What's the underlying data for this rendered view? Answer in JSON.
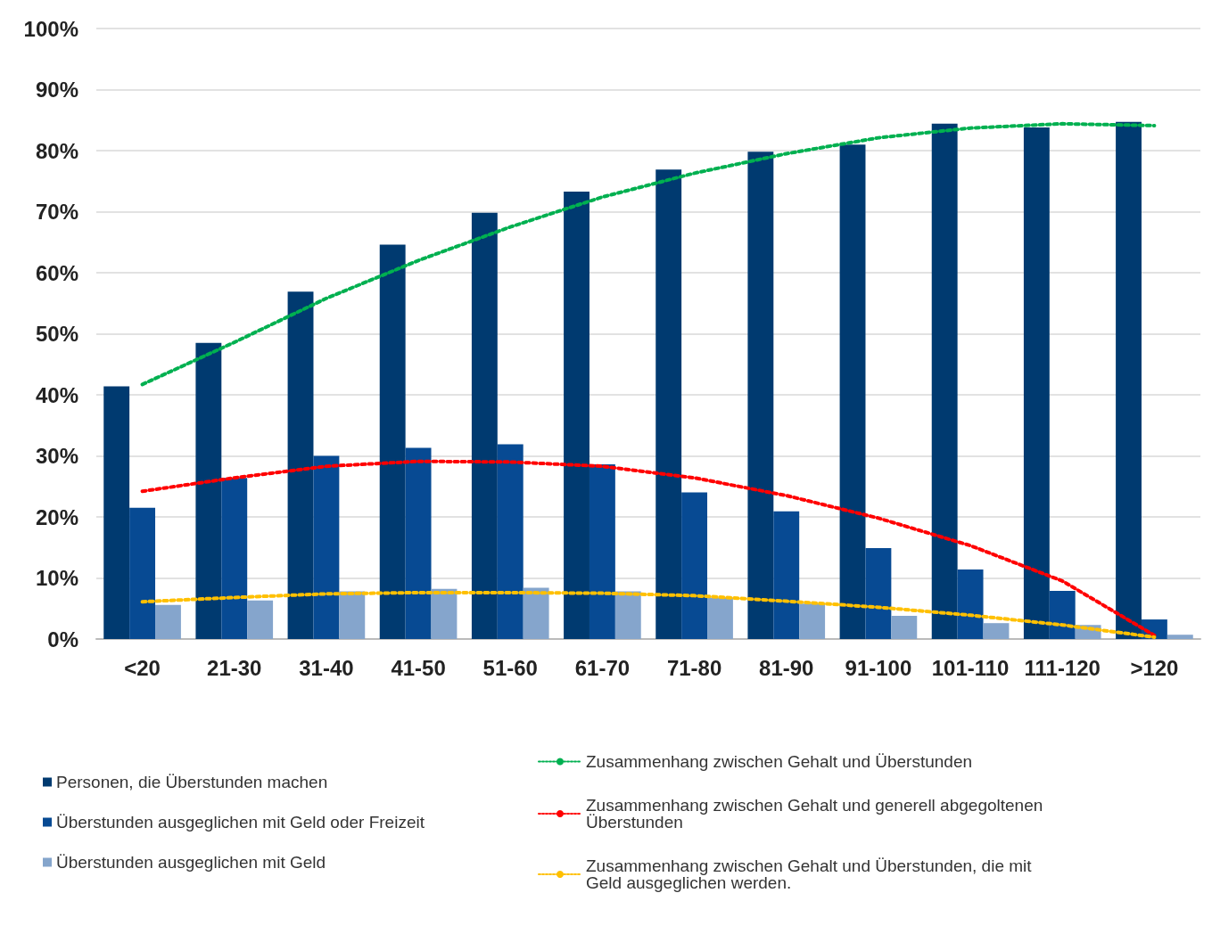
{
  "chart_data": {
    "type": "bar",
    "categories": [
      "<20",
      "21-30",
      "31-40",
      "41-50",
      "51-60",
      "61-70",
      "71-80",
      "81-90",
      "91-100",
      "101-110",
      "111-120",
      ">120"
    ],
    "ylim": [
      0,
      100
    ],
    "yticks": [
      {
        "value": 0,
        "label": "0%"
      },
      {
        "value": 10,
        "label": "10%"
      },
      {
        "value": 20,
        "label": "20%"
      },
      {
        "value": 30,
        "label": "30%"
      },
      {
        "value": 40,
        "label": "40%"
      },
      {
        "value": 50,
        "label": "50%"
      },
      {
        "value": 60,
        "label": "60%"
      },
      {
        "value": 70,
        "label": "70%"
      },
      {
        "value": 80,
        "label": "80%"
      },
      {
        "value": 90,
        "label": "90%"
      },
      {
        "value": 100,
        "label": "100%"
      }
    ],
    "grid": "y",
    "legend": "bottom",
    "line_style": "dotted",
    "marker": "none",
    "series": [
      {
        "name": "Personen, die Überstunden machen",
        "color": "#003a70",
        "values": [
          41.4,
          48.5,
          56.9,
          64.6,
          69.8,
          73.3,
          76.9,
          79.8,
          81.0,
          84.4,
          83.8,
          84.7
        ]
      },
      {
        "name": "Überstunden ausgeglichen mit Geld oder Freizeit",
        "color": "#074a93",
        "values": [
          21.5,
          26.4,
          30.0,
          31.3,
          31.9,
          28.6,
          24.0,
          20.9,
          14.9,
          11.4,
          7.9,
          3.2
        ]
      },
      {
        "name": "Überstunden ausgeglichen mit Geld",
        "color": "#85a5cc",
        "values": [
          5.6,
          6.3,
          7.8,
          8.2,
          8.4,
          7.8,
          6.8,
          5.8,
          3.8,
          2.6,
          2.3,
          0.7
        ]
      },
      {
        "type": "line",
        "name": "Zusammenhang zwischen Gehalt und Überstunden",
        "color": "#00b050",
        "values": [
          41.7,
          48.6,
          55.8,
          62.0,
          67.5,
          72.4,
          76.3,
          79.5,
          82.1,
          83.7,
          84.4,
          84.1
        ]
      },
      {
        "type": "line",
        "name": "Zusammenhang zwischen Gehalt und generell abgegoltenen Überstunden",
        "color": "#ff0000",
        "values": [
          24.2,
          26.4,
          28.3,
          29.1,
          29.0,
          28.3,
          26.4,
          23.5,
          19.8,
          15.3,
          9.5,
          0.6
        ]
      },
      {
        "type": "line",
        "name": "Zusammenhang zwischen Gehalt und Überstunden, die mit Geld ausgeglichen werden.",
        "color": "#ffc000",
        "values": [
          6.1,
          6.8,
          7.4,
          7.6,
          7.6,
          7.5,
          7.1,
          6.2,
          5.2,
          3.9,
          2.3,
          0.3
        ]
      }
    ]
  }
}
